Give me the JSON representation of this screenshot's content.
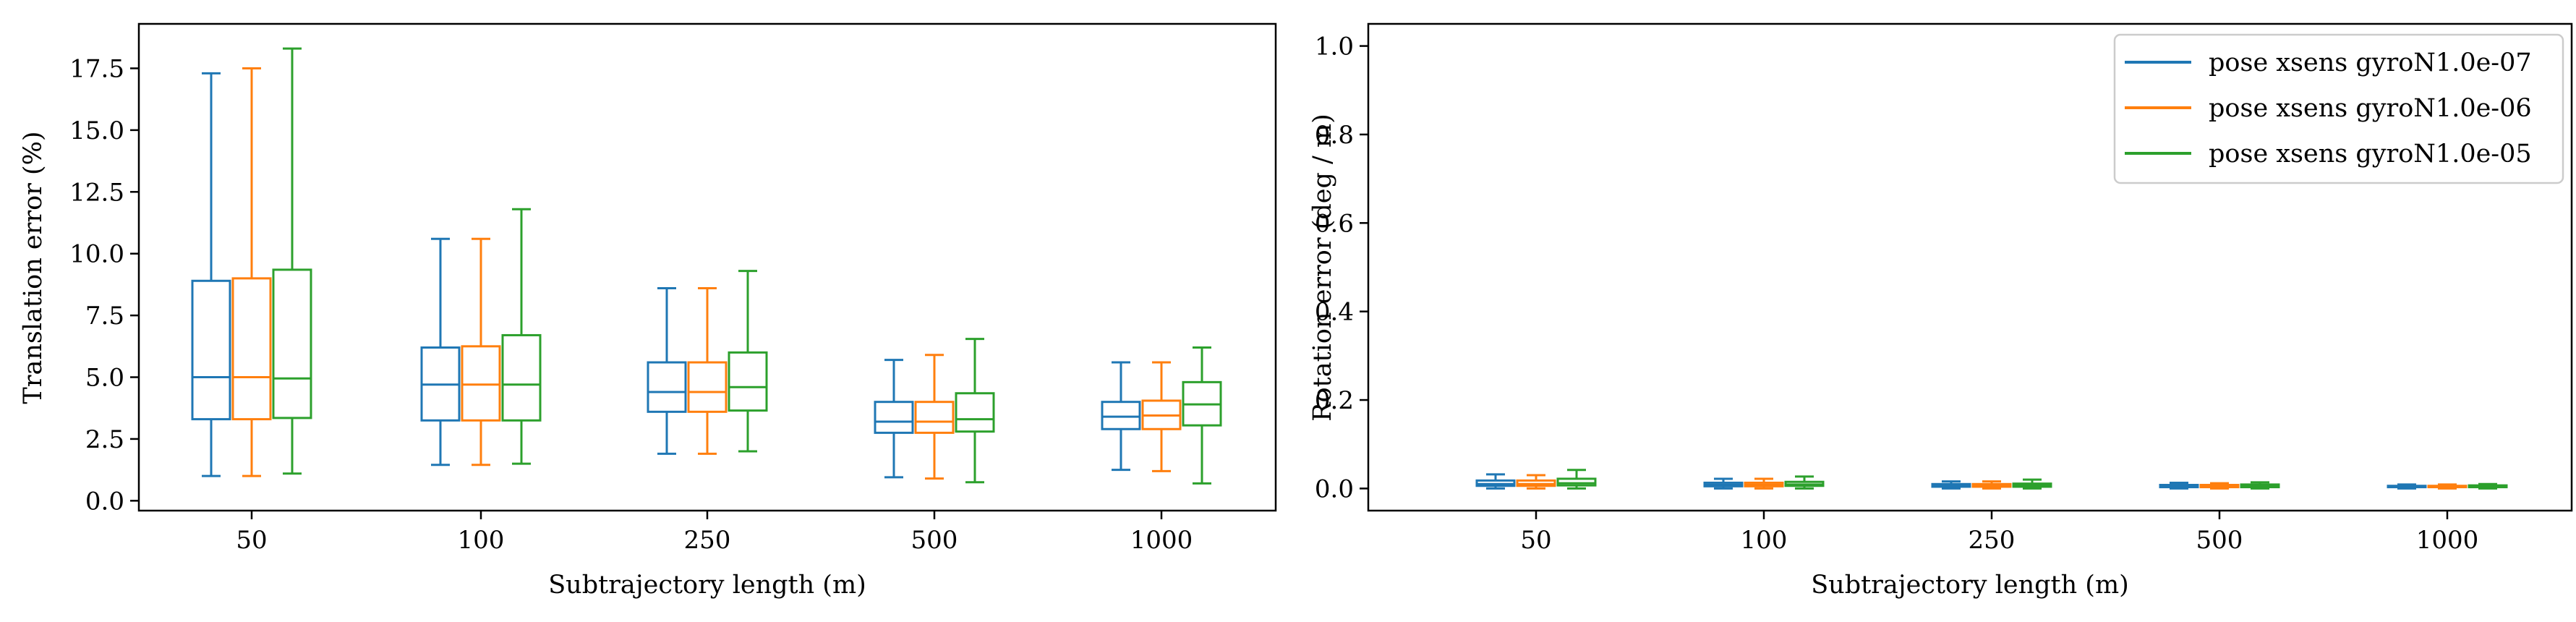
{
  "chart_data": [
    {
      "type": "box",
      "xlabel": "Subtrajectory length (m)",
      "ylabel": "Translation error (%)",
      "categories": [
        "50",
        "100",
        "250",
        "500",
        "1000"
      ],
      "ylim": [
        -0.4,
        19.3
      ],
      "yticks": [
        "0.0",
        "2.5",
        "5.0",
        "7.5",
        "10.0",
        "12.5",
        "15.0",
        "17.5"
      ],
      "grid": false,
      "series": [
        {
          "name": "pose xsens gyroN1.0e-07",
          "color": "#1f77b4",
          "boxes": [
            {
              "whislo": 1.0,
              "q1": 3.3,
              "med": 5.0,
              "q3": 8.9,
              "whishi": 17.3
            },
            {
              "whislo": 1.45,
              "q1": 3.25,
              "med": 4.7,
              "q3": 6.2,
              "whishi": 10.6
            },
            {
              "whislo": 1.9,
              "q1": 3.6,
              "med": 4.4,
              "q3": 5.6,
              "whishi": 8.6
            },
            {
              "whislo": 0.95,
              "q1": 2.75,
              "med": 3.2,
              "q3": 4.0,
              "whishi": 5.7
            },
            {
              "whislo": 1.25,
              "q1": 2.9,
              "med": 3.4,
              "q3": 4.0,
              "whishi": 5.6
            }
          ]
        },
        {
          "name": "pose xsens gyroN1.0e-06",
          "color": "#ff7f0e",
          "boxes": [
            {
              "whislo": 1.0,
              "q1": 3.3,
              "med": 5.0,
              "q3": 9.0,
              "whishi": 17.5
            },
            {
              "whislo": 1.45,
              "q1": 3.25,
              "med": 4.7,
              "q3": 6.25,
              "whishi": 10.6
            },
            {
              "whislo": 1.9,
              "q1": 3.6,
              "med": 4.4,
              "q3": 5.6,
              "whishi": 8.6
            },
            {
              "whislo": 0.9,
              "q1": 2.75,
              "med": 3.2,
              "q3": 4.0,
              "whishi": 5.9
            },
            {
              "whislo": 1.2,
              "q1": 2.9,
              "med": 3.45,
              "q3": 4.05,
              "whishi": 5.6
            }
          ]
        },
        {
          "name": "pose xsens gyroN1.0e-05",
          "color": "#2ca02c",
          "boxes": [
            {
              "whislo": 1.1,
              "q1": 3.35,
              "med": 4.95,
              "q3": 9.35,
              "whishi": 18.3
            },
            {
              "whislo": 1.5,
              "q1": 3.25,
              "med": 4.7,
              "q3": 6.7,
              "whishi": 11.8
            },
            {
              "whislo": 2.0,
              "q1": 3.65,
              "med": 4.6,
              "q3": 6.0,
              "whishi": 9.3
            },
            {
              "whislo": 0.75,
              "q1": 2.8,
              "med": 3.3,
              "q3": 4.35,
              "whishi": 6.55
            },
            {
              "whislo": 0.7,
              "q1": 3.05,
              "med": 3.9,
              "q3": 4.8,
              "whishi": 6.2
            }
          ]
        }
      ]
    },
    {
      "type": "box",
      "xlabel": "Subtrajectory length (m)",
      "ylabel": "Rotation error (deg / m)",
      "categories": [
        "50",
        "100",
        "250",
        "500",
        "1000"
      ],
      "ylim": [
        -0.05,
        1.05
      ],
      "yticks": [
        "0.0",
        "0.2",
        "0.4",
        "0.6",
        "0.8",
        "1.0"
      ],
      "grid": false,
      "legend_position": "top-right",
      "series": [
        {
          "name": "pose xsens gyroN1.0e-07",
          "color": "#1f77b4",
          "boxes": [
            {
              "whislo": 0.0,
              "q1": 0.006,
              "med": 0.01,
              "q3": 0.018,
              "whishi": 0.032
            },
            {
              "whislo": 0.0,
              "q1": 0.005,
              "med": 0.008,
              "q3": 0.013,
              "whishi": 0.022
            },
            {
              "whislo": 0.0,
              "q1": 0.004,
              "med": 0.006,
              "q3": 0.01,
              "whishi": 0.016
            },
            {
              "whislo": 0.0,
              "q1": 0.003,
              "med": 0.005,
              "q3": 0.008,
              "whishi": 0.013
            },
            {
              "whislo": 0.0,
              "q1": 0.003,
              "med": 0.004,
              "q3": 0.006,
              "whishi": 0.009
            }
          ]
        },
        {
          "name": "pose xsens gyroN1.0e-06",
          "color": "#ff7f0e",
          "boxes": [
            {
              "whislo": 0.0,
              "q1": 0.006,
              "med": 0.01,
              "q3": 0.018,
              "whishi": 0.03
            },
            {
              "whislo": 0.0,
              "q1": 0.005,
              "med": 0.008,
              "q3": 0.013,
              "whishi": 0.022
            },
            {
              "whislo": 0.0,
              "q1": 0.004,
              "med": 0.006,
              "q3": 0.01,
              "whishi": 0.016
            },
            {
              "whislo": 0.0,
              "q1": 0.003,
              "med": 0.005,
              "q3": 0.008,
              "whishi": 0.012
            },
            {
              "whislo": 0.0,
              "q1": 0.003,
              "med": 0.004,
              "q3": 0.006,
              "whishi": 0.009
            }
          ]
        },
        {
          "name": "pose xsens gyroN1.0e-05",
          "color": "#2ca02c",
          "boxes": [
            {
              "whislo": 0.0,
              "q1": 0.007,
              "med": 0.012,
              "q3": 0.022,
              "whishi": 0.042
            },
            {
              "whislo": 0.0,
              "q1": 0.006,
              "med": 0.009,
              "q3": 0.015,
              "whishi": 0.027
            },
            {
              "whislo": 0.0,
              "q1": 0.004,
              "med": 0.007,
              "q3": 0.011,
              "whishi": 0.02
            },
            {
              "whislo": 0.0,
              "q1": 0.003,
              "med": 0.005,
              "q3": 0.009,
              "whishi": 0.014
            },
            {
              "whislo": 0.0,
              "q1": 0.003,
              "med": 0.004,
              "q3": 0.007,
              "whishi": 0.01
            }
          ]
        }
      ]
    }
  ]
}
